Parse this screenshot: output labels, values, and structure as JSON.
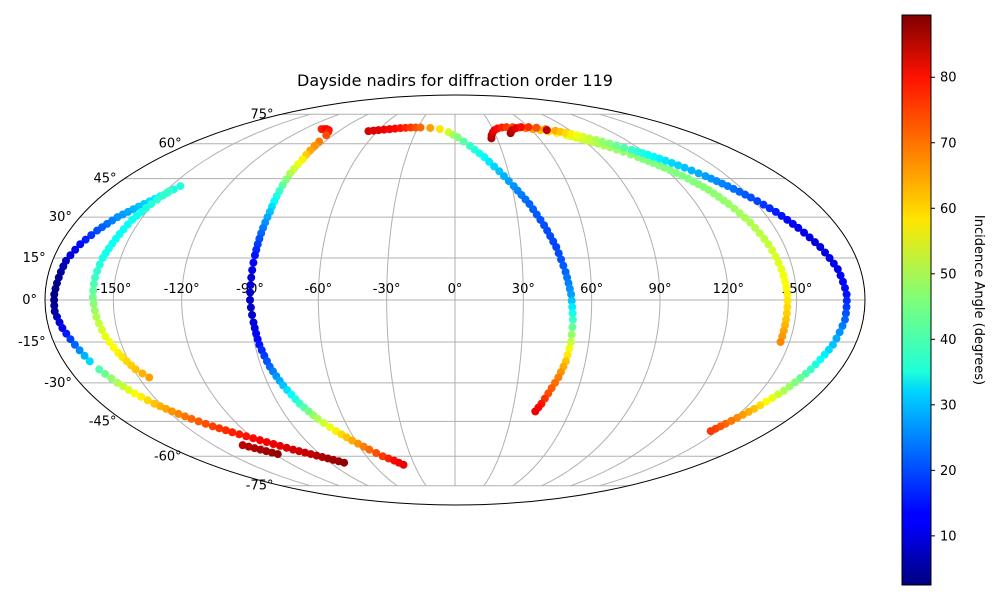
{
  "chart_data": {
    "type": "scatter",
    "projection": "mollweide",
    "title": "Dayside nadirs for diffraction order 119",
    "grid": true,
    "x_tick_labels": [
      "-150°",
      "-120°",
      "-90°",
      "-60°",
      "-30°",
      "0°",
      "30°",
      "60°",
      "90°",
      "120°",
      "150°"
    ],
    "x_ticks": [
      -150,
      -120,
      -90,
      -60,
      -30,
      0,
      30,
      60,
      90,
      120,
      150
    ],
    "y_tick_labels": [
      "-75°",
      "-60°",
      "-45°",
      "-30°",
      "-15°",
      "0°",
      "15°",
      "30°",
      "45°",
      "60°",
      "75°"
    ],
    "y_ticks": [
      -75,
      -60,
      -45,
      -30,
      -15,
      0,
      15,
      30,
      45,
      60,
      75
    ],
    "colorbar": {
      "label": "Incidence Angle (degrees)",
      "colormap": "jet",
      "range": [
        2.5,
        89.5
      ],
      "tick_values": [
        10,
        20,
        30,
        40,
        50,
        60,
        70,
        80
      ],
      "tick_labels": [
        "10",
        "20",
        "30",
        "40",
        "50",
        "60",
        "70",
        "80"
      ]
    },
    "series": [
      {
        "points": [
          [
            -106,
            67,
            76
          ],
          [
            -104,
            67,
            77
          ],
          [
            -102,
            67,
            79
          ],
          [
            -99,
            66.5,
            78
          ],
          [
            -97,
            65.5,
            76
          ],
          [
            -95,
            64,
            72
          ],
          [
            -94,
            61,
            68
          ],
          [
            -93,
            57,
            64
          ],
          [
            -92,
            53,
            58
          ],
          [
            -92,
            47,
            50
          ],
          [
            -91,
            40,
            40
          ],
          [
            -90,
            32,
            30
          ],
          [
            -90,
            24,
            22
          ],
          [
            -90,
            16,
            15
          ],
          [
            -90,
            8,
            10
          ],
          [
            -90,
            0,
            8
          ],
          [
            -89,
            -8,
            10
          ],
          [
            -88,
            -16,
            15
          ],
          [
            -86,
            -24,
            22
          ],
          [
            -83,
            -31,
            30
          ],
          [
            -79,
            -38,
            40
          ],
          [
            -74,
            -44,
            50
          ],
          [
            -68,
            -49,
            58
          ],
          [
            -62,
            -53,
            64
          ],
          [
            -55,
            -57,
            70
          ],
          [
            -49,
            -60,
            74
          ],
          [
            -43,
            -62,
            78
          ],
          [
            -38,
            -64,
            80
          ]
        ]
      },
      {
        "points": [
          [
            -67,
            66,
            82
          ],
          [
            -60,
            66.5,
            81
          ],
          [
            -52,
            67,
            79
          ],
          [
            -44,
            67.5,
            77
          ],
          [
            -36,
            67.8,
            74
          ],
          [
            -28,
            67.8,
            70
          ],
          [
            -20,
            67.6,
            65
          ],
          [
            -12,
            67,
            59
          ],
          [
            -5,
            65.5,
            53
          ],
          [
            2,
            63,
            46
          ],
          [
            10,
            59,
            40
          ],
          [
            18,
            54,
            35
          ],
          [
            25,
            48,
            30
          ],
          [
            31,
            42,
            26
          ],
          [
            37,
            35,
            22
          ],
          [
            42,
            27,
            20
          ],
          [
            46,
            19,
            19
          ],
          [
            49,
            10,
            22
          ],
          [
            51,
            2,
            27
          ],
          [
            52,
            -7,
            40
          ],
          [
            52,
            -15,
            52
          ],
          [
            51,
            -22,
            62
          ],
          [
            49,
            -28,
            68
          ],
          [
            46,
            -34,
            72
          ],
          [
            44,
            -38,
            77
          ],
          [
            42,
            -41,
            80
          ]
        ]
      },
      {
        "points": [
          [
            26,
            62.5,
            86
          ],
          [
            27,
            64,
            84
          ],
          [
            29,
            65.5,
            82
          ],
          [
            31,
            66.5,
            80
          ],
          [
            34,
            67.3,
            78
          ],
          [
            38,
            67.8,
            76
          ],
          [
            42,
            68,
            74
          ],
          [
            47,
            68,
            72
          ],
          [
            52,
            67.8,
            70
          ],
          [
            57,
            67.5,
            68
          ],
          [
            62,
            67,
            65
          ],
          [
            67,
            66.5,
            62
          ],
          [
            72,
            65.8,
            60
          ],
          [
            77,
            65,
            57
          ],
          [
            82,
            64,
            55
          ],
          [
            87,
            62.8,
            53
          ],
          [
            92,
            61.5,
            52
          ],
          [
            97,
            60,
            50
          ],
          [
            102,
            58.3,
            49
          ],
          [
            107,
            56.3,
            48
          ],
          [
            112,
            54,
            47
          ],
          [
            117,
            51.5,
            46
          ],
          [
            122,
            48.5,
            46
          ],
          [
            127,
            45,
            46
          ],
          [
            132,
            40.5,
            47
          ],
          [
            136,
            35,
            48
          ],
          [
            140,
            28,
            50
          ],
          [
            143,
            20,
            52
          ],
          [
            145,
            11,
            55
          ],
          [
            146,
            2,
            58
          ],
          [
            146,
            -7,
            62
          ],
          [
            146,
            -15,
            67
          ]
        ]
      },
      {
        "points": [
          [
            42,
            65,
            86
          ],
          [
            45,
            66.5,
            84
          ],
          [
            49,
            67.5,
            81
          ],
          [
            54,
            68,
            78
          ],
          [
            60,
            68,
            75
          ],
          [
            66,
            67.7,
            72
          ],
          [
            72,
            67,
            68
          ],
          [
            78,
            66.2,
            64
          ],
          [
            84,
            65.2,
            60
          ],
          [
            90,
            64,
            56
          ],
          [
            96,
            62.5,
            52
          ],
          [
            102,
            61,
            48
          ],
          [
            108,
            59.2,
            44
          ],
          [
            114,
            57.2,
            40
          ],
          [
            120,
            55,
            36
          ],
          [
            126,
            52.5,
            33
          ],
          [
            132,
            49.5,
            30
          ],
          [
            138,
            46,
            27
          ],
          [
            144,
            42,
            24
          ],
          [
            150,
            37.5,
            20
          ],
          [
            156,
            32,
            16
          ],
          [
            161,
            26,
            12
          ],
          [
            166,
            19,
            10
          ],
          [
            170,
            11,
            12
          ],
          [
            172,
            2,
            15
          ],
          [
            172,
            -7,
            22
          ],
          [
            170,
            -16,
            30
          ],
          [
            166,
            -25,
            40
          ],
          [
            161,
            -33,
            50
          ],
          [
            155,
            -40,
            62
          ],
          [
            149,
            -46,
            70
          ],
          [
            146,
            -49,
            74
          ]
        ]
      },
      {
        "points": [
          [
            -145,
            42,
            38
          ],
          [
            -150,
            38,
            35
          ],
          [
            -156,
            34,
            30
          ],
          [
            -162,
            30,
            26
          ],
          [
            -167,
            25,
            20
          ],
          [
            -171,
            20,
            14
          ],
          [
            -174,
            14,
            8
          ],
          [
            -175,
            8,
            4
          ],
          [
            -176,
            2,
            3
          ],
          [
            -176,
            -4,
            5
          ],
          [
            -174,
            -10,
            12
          ],
          [
            -171,
            -16,
            22
          ],
          [
            -168,
            -22,
            32
          ]
        ]
      },
      {
        "points": [
          [
            -148,
            40,
            40
          ],
          [
            -151,
            35,
            38
          ],
          [
            -154,
            29,
            36
          ],
          [
            -156,
            22,
            36
          ],
          [
            -158,
            15,
            37
          ],
          [
            -159,
            8,
            40
          ],
          [
            -159,
            1,
            45
          ],
          [
            -158,
            -6,
            50
          ],
          [
            -156,
            -13,
            55
          ],
          [
            -153,
            -19,
            58
          ],
          [
            -149,
            -25,
            62
          ],
          [
            -145,
            -28,
            65
          ]
        ]
      },
      {
        "points": [
          [
            -166,
            -25,
            42
          ],
          [
            -162,
            -30,
            50
          ],
          [
            -158,
            -34,
            56
          ],
          [
            -153,
            -38,
            62
          ],
          [
            -148,
            -41,
            66
          ],
          [
            -142,
            -44,
            70
          ],
          [
            -135,
            -47,
            73
          ],
          [
            -128,
            -49.5,
            76
          ],
          [
            -120,
            -52,
            78
          ],
          [
            -112,
            -54.5,
            80
          ],
          [
            -104,
            -57,
            82
          ],
          [
            -96,
            -59,
            84
          ],
          [
            -88,
            -61,
            86
          ],
          [
            -80,
            -63,
            88
          ]
        ]
      },
      {
        "points": [
          [
            -132,
            -55,
            84
          ],
          [
            -125,
            -57,
            86
          ],
          [
            -118,
            -59,
            88
          ]
        ]
      },
      {
        "points": [
          [
            72,
            66.5,
            84
          ]
        ]
      }
    ]
  }
}
